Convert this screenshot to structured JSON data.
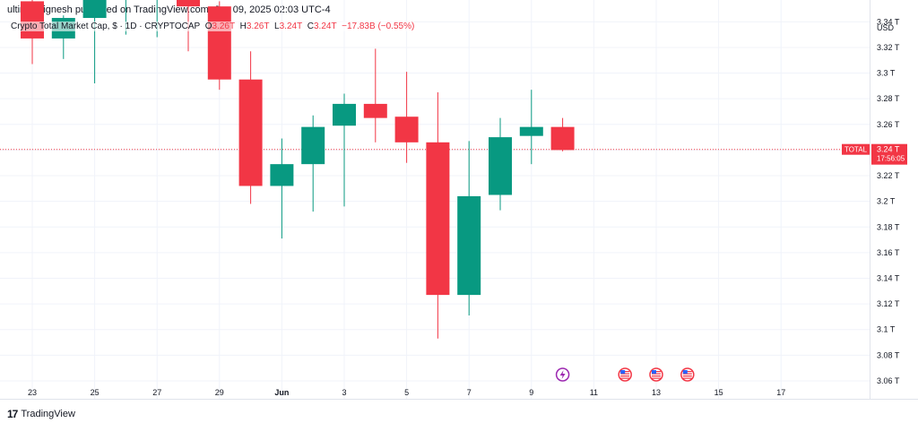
{
  "header": {
    "published": "ultimezvignesh published on TradingView.com, Jun 09, 2025 02:03 UTC-4"
  },
  "legend": {
    "symbol": "Crypto Total Market Cap, $ · 1D · CRYPTOCAP",
    "o_label": "O",
    "o_value": "3.26T",
    "h_label": "H",
    "h_value": "3.26T",
    "l_label": "L",
    "l_value": "3.24T",
    "c_label": "C",
    "c_value": "3.24T",
    "change": "−17.83B (−0.55%)"
  },
  "currency": "USD",
  "price_tag": {
    "symbol": "TOTAL",
    "price": "3.24 T",
    "countdown": "17:56:05"
  },
  "footer": {
    "brand": "TradingView"
  },
  "colors": {
    "up": "#089981",
    "down": "#f23645",
    "grid": "#f0f3fa",
    "axis_text": "#131722",
    "event_icon": "#9c27b0"
  },
  "chart_data": {
    "type": "candlestick",
    "x_ticks": [
      "23",
      "25",
      "27",
      "29",
      "Jun",
      "3",
      "5",
      "7",
      "9",
      "11",
      "13",
      "15",
      "17"
    ],
    "y_ticks": [
      "3.06 T",
      "3.08 T",
      "3.1 T",
      "3.12 T",
      "3.14 T",
      "3.16 T",
      "3.18 T",
      "3.2 T",
      "3.22 T",
      "3.24 T",
      "3.26 T",
      "3.28 T",
      "3.3 T",
      "3.32 T",
      "3.34 T"
    ],
    "ylim": [
      3.046,
      3.357
    ],
    "y_unit": "T",
    "current_price": 3.2405,
    "candles": [
      {
        "date": "May 23",
        "o": 3.356,
        "h": 3.37,
        "l": 3.307,
        "c": 3.327
      },
      {
        "date": "May 24",
        "o": 3.327,
        "h": 3.345,
        "l": 3.311,
        "c": 3.343
      },
      {
        "date": "May 25",
        "o": 3.343,
        "h": 3.375,
        "l": 3.292,
        "c": 3.37
      },
      {
        "date": "May 26",
        "o": 3.362,
        "h": 3.372,
        "l": 3.33,
        "c": 3.368
      },
      {
        "date": "May 27",
        "o": 3.365,
        "h": 3.372,
        "l": 3.328,
        "c": 3.37
      },
      {
        "date": "May 28",
        "o": 3.368,
        "h": 3.372,
        "l": 3.317,
        "c": 3.352
      },
      {
        "date": "May 29",
        "o": 3.352,
        "h": 3.356,
        "l": 3.287,
        "c": 3.295
      },
      {
        "date": "May 30",
        "o": 3.295,
        "h": 3.317,
        "l": 3.198,
        "c": 3.212
      },
      {
        "date": "May 31",
        "o": 3.212,
        "h": 3.249,
        "l": 3.171,
        "c": 3.229
      },
      {
        "date": "Jun 1",
        "o": 3.229,
        "h": 3.267,
        "l": 3.192,
        "c": 3.258
      },
      {
        "date": "Jun 2",
        "o": 3.259,
        "h": 3.284,
        "l": 3.196,
        "c": 3.276
      },
      {
        "date": "Jun 3",
        "o": 3.276,
        "h": 3.319,
        "l": 3.246,
        "c": 3.265
      },
      {
        "date": "Jun 4",
        "o": 3.266,
        "h": 3.301,
        "l": 3.23,
        "c": 3.246
      },
      {
        "date": "Jun 5",
        "o": 3.246,
        "h": 3.285,
        "l": 3.093,
        "c": 3.127
      },
      {
        "date": "Jun 6",
        "o": 3.127,
        "h": 3.247,
        "l": 3.111,
        "c": 3.204
      },
      {
        "date": "Jun 7",
        "o": 3.205,
        "h": 3.265,
        "l": 3.193,
        "c": 3.25
      },
      {
        "date": "Jun 8",
        "o": 3.251,
        "h": 3.287,
        "l": 3.229,
        "c": 3.258
      },
      {
        "date": "Jun 9",
        "o": 3.258,
        "h": 3.265,
        "l": 3.239,
        "c": 3.24
      }
    ],
    "events": [
      {
        "date": "Jun 9",
        "icon": "lightning-icon"
      },
      {
        "date": "Jun 11",
        "icon": "us-flag-icon"
      },
      {
        "date": "Jun 12",
        "icon": "us-flag-icon"
      },
      {
        "date": "Jun 13",
        "icon": "us-flag-icon"
      }
    ]
  }
}
